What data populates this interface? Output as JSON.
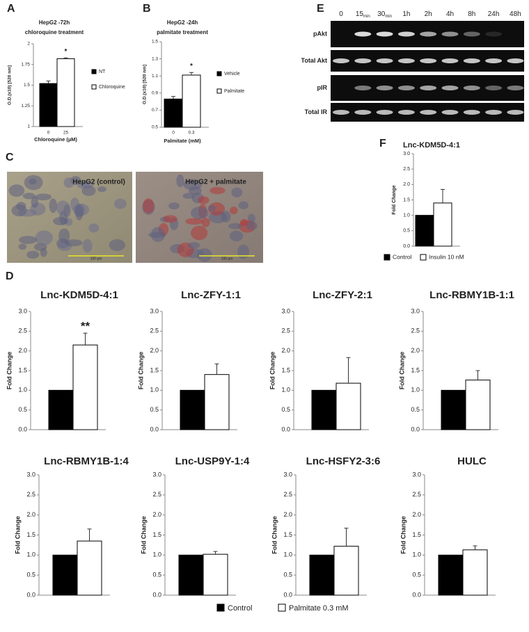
{
  "panel_labels": [
    "A",
    "B",
    "C",
    "D",
    "E",
    "F"
  ],
  "chart_data": [
    {
      "type": "bar",
      "title": [
        "HepG2 -72h",
        "chloroquine treatment"
      ],
      "ylabel": "O.D.(x10) [520 nm]",
      "xlabel": "Chloroquine (µM)",
      "categories": [
        "0",
        "25"
      ],
      "values": [
        1.52,
        1.82
      ],
      "errors": [
        0.03,
        0.01
      ],
      "colors": [
        "#000000",
        "#ffffff"
      ],
      "legend": [
        "NT",
        "Chloroquine"
      ],
      "annotation": "*",
      "ylim": [
        1,
        2
      ],
      "yticks": [
        1,
        1.25,
        1.5,
        1.75,
        2
      ]
    },
    {
      "type": "bar",
      "title": [
        "HepG2 -24h",
        "palmitate treatment"
      ],
      "ylabel": "O.D.(x10) [520 nm]",
      "xlabel": "Palmitate (mM)",
      "categories": [
        "0",
        "0.3"
      ],
      "values": [
        0.83,
        1.11
      ],
      "errors": [
        0.03,
        0.03
      ],
      "colors": [
        "#000000",
        "#ffffff"
      ],
      "legend": [
        "Vehicle",
        "Palmitate"
      ],
      "annotation": "*",
      "ylim": [
        0.5,
        1.5
      ],
      "yticks": [
        0.5,
        0.7,
        0.9,
        1.1,
        1.3,
        1.5
      ]
    },
    {
      "type": "bar",
      "title": [
        "Lnc-KDM5D-4:1"
      ],
      "ylabel": "Fold Change",
      "values": [
        1.0,
        1.4
      ],
      "errors": [
        null,
        0.44
      ],
      "colors": [
        "#000000",
        "#ffffff"
      ],
      "legend": [
        "Control",
        "Insulin 10 nM"
      ],
      "ylim": [
        0,
        3
      ],
      "yticks": [
        {
          "value": 0,
          "label": "0.0"
        },
        {
          "value": 0.5,
          "label": "0.5"
        },
        {
          "value": 1,
          "label": "1.0"
        },
        {
          "value": 1.5,
          "label": "1.5"
        },
        {
          "value": 2,
          "label": "2.0"
        },
        {
          "value": 2.5,
          "label": "2.5"
        },
        {
          "value": 3,
          "label": "3.0"
        }
      ]
    },
    {
      "type": "bar",
      "title": [
        "Lnc-KDM5D-4:1"
      ],
      "ylabel": "Fold Change",
      "values": [
        1.0,
        2.15
      ],
      "errors": [
        null,
        0.3
      ],
      "colors": [
        "#000000",
        "#ffffff"
      ],
      "annotation": "**",
      "ylim": [
        0,
        3
      ],
      "yticks": [
        {
          "value": 0,
          "label": "0.0"
        },
        {
          "value": 0.5,
          "label": "0.5"
        },
        {
          "value": 1,
          "label": "1.0"
        },
        {
          "value": 1.5,
          "label": "1.5"
        },
        {
          "value": 2,
          "label": "2.0"
        },
        {
          "value": 2.5,
          "label": "2.5"
        },
        {
          "value": 3,
          "label": "3.0"
        }
      ]
    },
    {
      "type": "bar",
      "title": [
        "Lnc-ZFY-1:1"
      ],
      "ylabel": "Fold Change",
      "values": [
        1.0,
        1.4
      ],
      "errors": [
        null,
        0.27
      ],
      "colors": [
        "#000000",
        "#ffffff"
      ],
      "ylim": [
        0,
        3
      ],
      "yticks": [
        {
          "value": 0,
          "label": "0.0"
        },
        {
          "value": 0.5,
          "label": "0.5"
        },
        {
          "value": 1,
          "label": "1.0"
        },
        {
          "value": 1.5,
          "label": "1.5"
        },
        {
          "value": 2,
          "label": "2.0"
        },
        {
          "value": 2.5,
          "label": "2.5"
        },
        {
          "value": 3,
          "label": "3.0"
        }
      ]
    },
    {
      "type": "bar",
      "title": [
        "Lnc-ZFY-2:1"
      ],
      "ylabel": "Fold Change",
      "values": [
        1.0,
        1.18
      ],
      "errors": [
        null,
        0.65
      ],
      "colors": [
        "#000000",
        "#ffffff"
      ],
      "ylim": [
        0,
        3
      ],
      "yticks": [
        {
          "value": 0,
          "label": "0.0"
        },
        {
          "value": 0.5,
          "label": "0.5"
        },
        {
          "value": 1,
          "label": "1.0"
        },
        {
          "value": 1.5,
          "label": "1.5"
        },
        {
          "value": 2,
          "label": "2.0"
        },
        {
          "value": 2.5,
          "label": "2.5"
        },
        {
          "value": 3,
          "label": "3.0"
        }
      ]
    },
    {
      "type": "bar",
      "title": [
        "Lnc-RBMY1B-1:1"
      ],
      "ylabel": "Fold Change",
      "values": [
        1.0,
        1.26
      ],
      "errors": [
        null,
        0.24
      ],
      "colors": [
        "#000000",
        "#ffffff"
      ],
      "ylim": [
        0,
        3
      ],
      "yticks": [
        {
          "value": 0,
          "label": "0.0"
        },
        {
          "value": 0.5,
          "label": "0.5"
        },
        {
          "value": 1,
          "label": "1.0"
        },
        {
          "value": 1.5,
          "label": "1.5"
        },
        {
          "value": 2,
          "label": "2.0"
        },
        {
          "value": 2.5,
          "label": "2.5"
        },
        {
          "value": 3,
          "label": "3.0"
        }
      ]
    },
    {
      "type": "bar",
      "title": [
        "Lnc-RBMY1B-1:4"
      ],
      "ylabel": "Fold Change",
      "values": [
        1.0,
        1.35
      ],
      "errors": [
        null,
        0.3
      ],
      "colors": [
        "#000000",
        "#ffffff"
      ],
      "ylim": [
        0,
        3
      ],
      "yticks": [
        {
          "value": 0,
          "label": "0.0"
        },
        {
          "value": 0.5,
          "label": "0.5"
        },
        {
          "value": 1,
          "label": "1.0"
        },
        {
          "value": 1.5,
          "label": "1.5"
        },
        {
          "value": 2,
          "label": "2.0"
        },
        {
          "value": 2.5,
          "label": "2.5"
        },
        {
          "value": 3,
          "label": "3.0"
        }
      ]
    },
    {
      "type": "bar",
      "title": [
        "Lnc-USP9Y-1:4"
      ],
      "ylabel": "Fold Change",
      "values": [
        1.0,
        1.02
      ],
      "errors": [
        null,
        0.07
      ],
      "colors": [
        "#000000",
        "#ffffff"
      ],
      "ylim": [
        0,
        3
      ],
      "yticks": [
        {
          "value": 0,
          "label": "0.0"
        },
        {
          "value": 0.5,
          "label": "0.5"
        },
        {
          "value": 1,
          "label": "1.0"
        },
        {
          "value": 1.5,
          "label": "1.5"
        },
        {
          "value": 2,
          "label": "2.0"
        },
        {
          "value": 2.5,
          "label": "2.5"
        },
        {
          "value": 3,
          "label": "3.0"
        }
      ]
    },
    {
      "type": "bar",
      "title": [
        "Lnc-HSFY2-3:6"
      ],
      "ylabel": "Fold Change",
      "values": [
        1.0,
        1.22
      ],
      "errors": [
        null,
        0.45
      ],
      "colors": [
        "#000000",
        "#ffffff"
      ],
      "ylim": [
        0,
        3
      ],
      "yticks": [
        {
          "value": 0,
          "label": "0.0"
        },
        {
          "value": 0.5,
          "label": "0.5"
        },
        {
          "value": 1,
          "label": "1.0"
        },
        {
          "value": 1.5,
          "label": "1.5"
        },
        {
          "value": 2,
          "label": "2.0"
        },
        {
          "value": 2.5,
          "label": "2.5"
        },
        {
          "value": 3,
          "label": "3.0"
        }
      ]
    },
    {
      "type": "bar",
      "title": [
        "HULC"
      ],
      "ylabel": "Fold Change",
      "values": [
        1.0,
        1.13
      ],
      "errors": [
        null,
        0.1
      ],
      "colors": [
        "#000000",
        "#ffffff"
      ],
      "ylim": [
        0,
        3
      ],
      "yticks": [
        {
          "value": 0,
          "label": "0.0"
        },
        {
          "value": 0.5,
          "label": "0.5"
        },
        {
          "value": 1,
          "label": "1.0"
        },
        {
          "value": 1.5,
          "label": "1.5"
        },
        {
          "value": 2,
          "label": "2.0"
        },
        {
          "value": 2.5,
          "label": "2.5"
        },
        {
          "value": 3,
          "label": "3.0"
        }
      ]
    }
  ],
  "legend_d": [
    "Control",
    "Palmitate 0.3 mM"
  ],
  "blot": {
    "lanes": [
      {
        "label": "0"
      },
      {
        "label": "15",
        "sub": "min"
      },
      {
        "label": "30",
        "sub": "min"
      },
      {
        "label": "1h"
      },
      {
        "label": "2h"
      },
      {
        "label": "4h"
      },
      {
        "label": "8h"
      },
      {
        "label": "24h"
      },
      {
        "label": "48h"
      }
    ],
    "rows": [
      "pAkt",
      "Total Akt",
      "pIR",
      "Total IR"
    ]
  },
  "micrographs": [
    {
      "label": "HepG2 (control)",
      "scale": "100 µm"
    },
    {
      "label": "HepG2 + palmitate",
      "scale": "100 µm"
    }
  ]
}
